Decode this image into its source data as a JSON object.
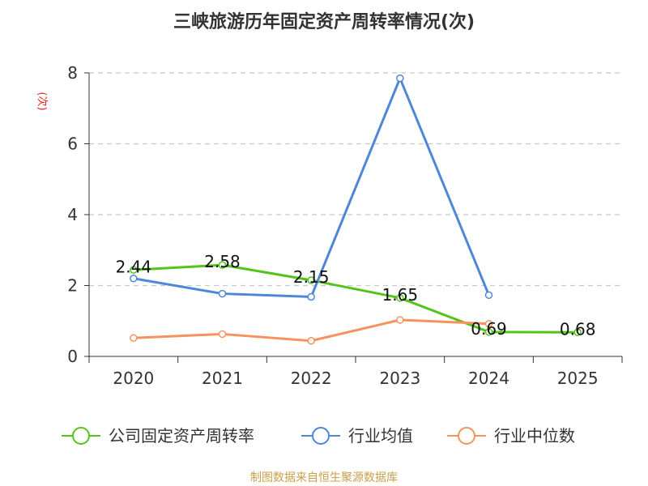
{
  "chart_data": {
    "type": "line",
    "title": "三峡旅游历年固定资产周转率情况(次)",
    "ylabel": "(次)",
    "xlabel": "",
    "categories": [
      "2020",
      "2021",
      "2022",
      "2023",
      "2024",
      "2025"
    ],
    "ylim": [
      0,
      8
    ],
    "yticks": [
      0,
      2,
      4,
      6,
      8
    ],
    "grid": true,
    "legend_position": "bottom",
    "series": [
      {
        "name": "公司固定资产周转率",
        "color": "#52c41a",
        "values": [
          2.44,
          2.58,
          2.15,
          1.65,
          0.69,
          0.68
        ],
        "labels": [
          "2.44",
          "2.58",
          "2.15",
          "1.65",
          "0.69",
          "0.68"
        ]
      },
      {
        "name": "行业均值",
        "color": "#4e86d8",
        "values": [
          2.2,
          1.77,
          1.68,
          7.85,
          1.73,
          null
        ]
      },
      {
        "name": "行业中位数",
        "color": "#f5925e",
        "values": [
          0.52,
          0.63,
          0.44,
          1.03,
          0.92,
          null
        ]
      }
    ],
    "source": "制图数据来自恒生聚源数据库"
  }
}
